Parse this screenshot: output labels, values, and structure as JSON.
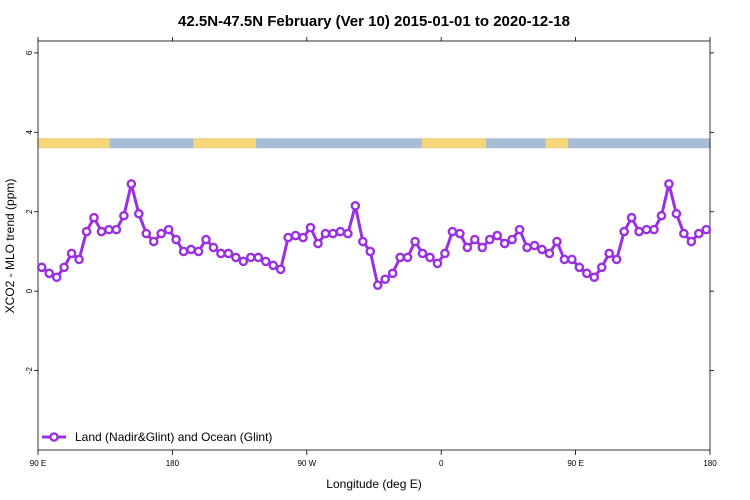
{
  "chart_data": {
    "type": "line",
    "title": "42.5N-47.5N February (Ver 10)   2015-01-01 to 2020-12-18",
    "xlabel": "Longitude (deg E)",
    "ylabel": "XCO2 - MLO trend (ppm)",
    "xlim": [
      90,
      540
    ],
    "ylim": [
      -4,
      6.3
    ],
    "x_ticks": [
      {
        "value": 90,
        "label": "90 E"
      },
      {
        "value": 180,
        "label": "180"
      },
      {
        "value": 270,
        "label": "90 W"
      },
      {
        "value": 360,
        "label": "0"
      },
      {
        "value": 450,
        "label": "90 E"
      },
      {
        "value": 540,
        "label": "180"
      }
    ],
    "y_ticks": [
      {
        "value": -2,
        "label": "-2"
      },
      {
        "value": 0,
        "label": "0"
      },
      {
        "value": 2,
        "label": "2"
      },
      {
        "value": 4,
        "label": "4"
      },
      {
        "value": 6,
        "label": "6"
      }
    ],
    "legend": {
      "position": "bottom-left",
      "label": "Land (Nadir&Glint) and Ocean (Glint)"
    },
    "grid": false,
    "colors": {
      "series": "#9b30e0",
      "land": "#f5d77a",
      "ocean": "#a8bcd8"
    },
    "land_ocean_band": {
      "y_range": [
        3.6,
        3.85
      ],
      "land_segments": [
        [
          90,
          138
        ],
        [
          194,
          236
        ],
        [
          347,
          390
        ],
        [
          430,
          445
        ]
      ]
    },
    "series": [
      {
        "name": "Land (Nadir&Glint) and Ocean (Glint)",
        "x": [
          92.5,
          97.5,
          102.5,
          107.5,
          112.5,
          117.5,
          122.5,
          127.5,
          132.5,
          137.5,
          142.5,
          147.5,
          152.5,
          157.5,
          162.5,
          167.5,
          172.5,
          177.5,
          182.5,
          187.5,
          192.5,
          197.5,
          202.5,
          207.5,
          212.5,
          217.5,
          222.5,
          227.5,
          232.5,
          237.5,
          242.5,
          247.5,
          252.5,
          257.5,
          262.5,
          267.5,
          272.5,
          277.5,
          282.5,
          287.5,
          292.5,
          297.5,
          302.5,
          307.5,
          312.5,
          317.5,
          322.5,
          327.5,
          332.5,
          337.5,
          342.5,
          347.5,
          352.5,
          357.5,
          362.5,
          367.5,
          372.5,
          377.5,
          382.5,
          387.5,
          392.5,
          397.5,
          402.5,
          407.5,
          412.5,
          417.5,
          422.5,
          427.5,
          432.5,
          437.5,
          442.5,
          447.5,
          452.5,
          457.5,
          462.5,
          467.5,
          472.5,
          477.5,
          482.5,
          487.5,
          492.5,
          497.5,
          502.5,
          507.5,
          512.5,
          517.5,
          522.5,
          527.5,
          532.5,
          537.5
        ],
        "values": [
          0.6,
          0.45,
          0.35,
          0.6,
          0.95,
          0.8,
          1.5,
          1.85,
          1.5,
          1.55,
          1.55,
          1.9,
          2.7,
          1.95,
          1.45,
          1.25,
          1.45,
          1.55,
          1.3,
          1.0,
          1.05,
          1.0,
          1.3,
          1.1,
          0.95,
          0.95,
          0.85,
          0.75,
          0.85,
          0.85,
          0.75,
          0.65,
          0.55,
          1.35,
          1.4,
          1.35,
          1.6,
          1.2,
          1.45,
          1.45,
          1.5,
          1.45,
          2.15,
          1.25,
          1.0,
          0.15,
          0.3,
          0.45,
          0.85,
          0.85,
          1.25,
          0.95,
          0.85,
          0.7,
          0.95,
          1.5,
          1.45,
          1.1,
          1.3,
          1.1,
          1.3,
          1.4,
          1.2,
          1.3,
          1.55,
          1.1,
          1.15,
          1.05,
          0.95,
          1.25,
          0.8,
          0.8,
          0.6,
          0.45,
          0.35,
          0.6,
          0.95,
          0.8,
          1.5,
          1.85,
          1.5,
          1.55,
          1.55,
          1.9,
          2.7,
          1.95,
          1.45,
          1.25,
          1.45,
          1.55
        ]
      }
    ]
  }
}
